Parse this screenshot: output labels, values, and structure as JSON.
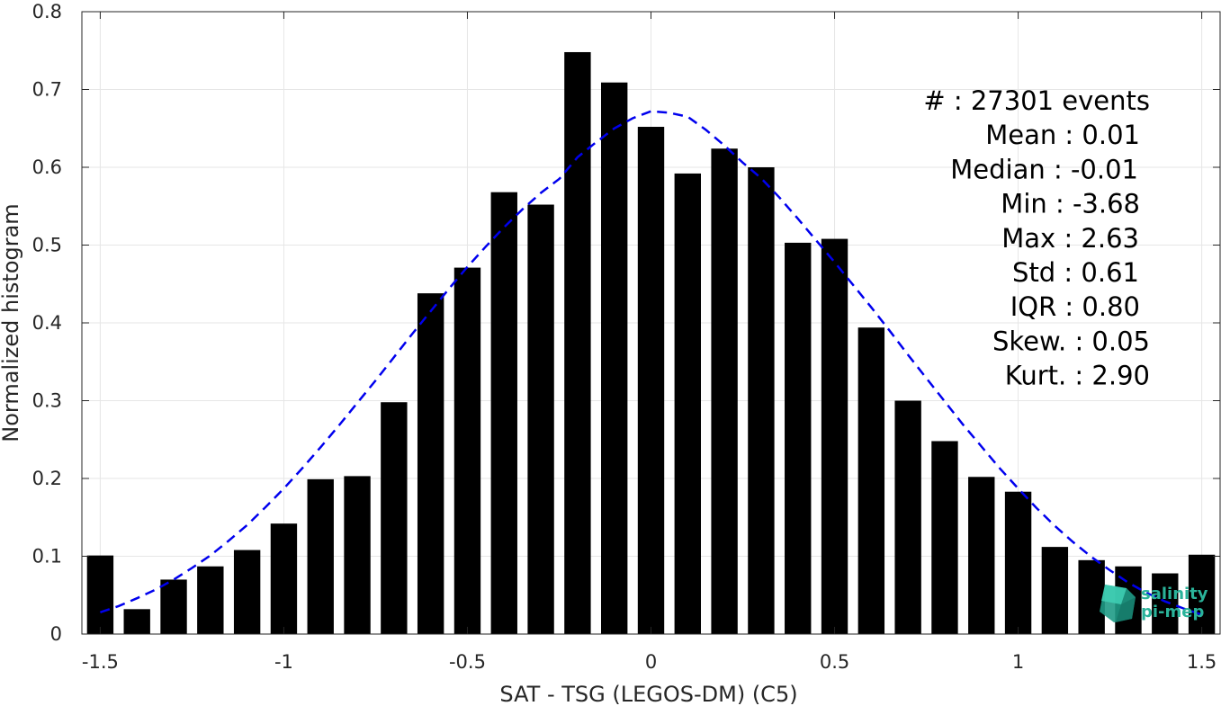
{
  "chart_data": {
    "type": "bar",
    "xlabel": "SAT - TSG (LEGOS-DM) (C5)",
    "ylabel": "Normalized histogram",
    "xlim": [
      -1.55,
      1.55
    ],
    "ylim": [
      0,
      0.8
    ],
    "grid": true,
    "x_ticks": [
      -1.5,
      -1,
      -0.5,
      0,
      0.5,
      1,
      1.5
    ],
    "x_tick_labels": [
      "-1.5",
      "-1",
      "-0.5",
      "0",
      "0.5",
      "1",
      "1.5"
    ],
    "y_ticks": [
      0,
      0.1,
      0.2,
      0.3,
      0.4,
      0.5,
      0.6,
      0.7,
      0.8
    ],
    "y_tick_labels": [
      "0",
      "0.1",
      "0.2",
      "0.3",
      "0.4",
      "0.5",
      "0.6",
      "0.7",
      "0.8"
    ],
    "bars": {
      "x": [
        -1.5,
        -1.4,
        -1.3,
        -1.2,
        -1.1,
        -1.0,
        -0.9,
        -0.8,
        -0.7,
        -0.6,
        -0.5,
        -0.4,
        -0.3,
        -0.2,
        -0.1,
        0.0,
        0.1,
        0.2,
        0.3,
        0.4,
        0.5,
        0.6,
        0.7,
        0.8,
        0.9,
        1.0,
        1.1,
        1.2,
        1.3,
        1.4,
        1.5
      ],
      "values": [
        0.101,
        0.032,
        0.07,
        0.087,
        0.108,
        0.142,
        0.199,
        0.203,
        0.298,
        0.438,
        0.471,
        0.568,
        0.552,
        0.748,
        0.709,
        0.652,
        0.592,
        0.624,
        0.6,
        0.503,
        0.508,
        0.394,
        0.3,
        0.248,
        0.202,
        0.183,
        0.112,
        0.095,
        0.087,
        0.078,
        0.102
      ],
      "color": "#000000"
    },
    "fit_curve": {
      "style": "dashed",
      "color": "#0000ee",
      "x": [
        -1.5,
        -1.45,
        -1.4,
        -1.35,
        -1.3,
        -1.25,
        -1.2,
        -1.15,
        -1.1,
        -1.05,
        -1.0,
        -0.95,
        -0.9,
        -0.85,
        -0.8,
        -0.75,
        -0.7,
        -0.65,
        -0.6,
        -0.55,
        -0.5,
        -0.45,
        -0.4,
        -0.35,
        -0.3,
        -0.25,
        -0.2,
        -0.15,
        -0.1,
        -0.05,
        0.0,
        0.05,
        0.1,
        0.15,
        0.2,
        0.25,
        0.3,
        0.35,
        0.4,
        0.45,
        0.5,
        0.55,
        0.6,
        0.65,
        0.7,
        0.75,
        0.8,
        0.85,
        0.9,
        0.95,
        1.0,
        1.05,
        1.1,
        1.15,
        1.2,
        1.25,
        1.3,
        1.35,
        1.4,
        1.45,
        1.5
      ],
      "y": [
        0.028,
        0.036,
        0.046,
        0.057,
        0.07,
        0.085,
        0.101,
        0.12,
        0.14,
        0.163,
        0.187,
        0.213,
        0.24,
        0.268,
        0.297,
        0.326,
        0.356,
        0.386,
        0.415,
        0.444,
        0.472,
        0.498,
        0.523,
        0.546,
        0.567,
        0.585,
        0.613,
        0.632,
        0.65,
        0.663,
        0.672,
        0.67,
        0.665,
        0.648,
        0.628,
        0.606,
        0.586,
        0.561,
        0.534,
        0.506,
        0.478,
        0.449,
        0.42,
        0.39,
        0.359,
        0.329,
        0.299,
        0.269,
        0.241,
        0.213,
        0.187,
        0.162,
        0.139,
        0.118,
        0.099,
        0.082,
        0.066,
        0.053,
        0.042,
        0.033,
        0.025
      ]
    },
    "stats": [
      "#  : 27301 events",
      "Mean : 0.01",
      "Median : -0.01",
      "Min : -3.68",
      "Max : 2.63",
      "Std : 0.61",
      "IQR : 0.80",
      "Skew. : 0.05",
      "Kurt. : 2.90"
    ]
  },
  "logo": {
    "line1": "salinity",
    "line2": "pi-mep",
    "color": "#2ab39a"
  }
}
